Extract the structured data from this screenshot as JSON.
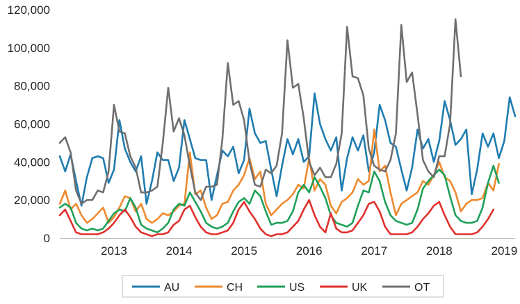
{
  "chart_data": {
    "type": "line",
    "title": "",
    "xlabel": "",
    "ylabel": "",
    "x_tick_labels": [
      "2013",
      "2014",
      "2015",
      "2016",
      "2017",
      "2018",
      "2019"
    ],
    "y_tick_labels": [
      "0",
      "20,000",
      "40,000",
      "60,000",
      "80,000",
      "100,000",
      "120,000"
    ],
    "ylim": [
      0,
      120000
    ],
    "x_start": "2012-09",
    "grid": false,
    "legend_position": "bottom",
    "series": [
      {
        "name": "AU",
        "color": "#1f7cb0",
        "values": [
          43000,
          35000,
          44000,
          30000,
          17000,
          32000,
          42000,
          43000,
          42000,
          29000,
          36000,
          62000,
          47000,
          40000,
          35000,
          43000,
          18000,
          30000,
          45000,
          41000,
          41000,
          30000,
          37000,
          62000,
          52000,
          42000,
          41000,
          41000,
          20000,
          33000,
          46000,
          43000,
          48000,
          34000,
          41000,
          68000,
          55000,
          50000,
          51000,
          36000,
          22000,
          38000,
          52000,
          44000,
          52000,
          40000,
          43000,
          76000,
          60000,
          52000,
          46000,
          53000,
          25000,
          42000,
          53000,
          46000,
          54000,
          35000,
          45000,
          70000,
          62000,
          50000,
          48000,
          36000,
          25000,
          37000,
          57000,
          47000,
          52000,
          40000,
          51000,
          72000,
          62000,
          49000,
          52000,
          57000,
          23000,
          36000,
          55000,
          48000,
          55000,
          42000,
          51000,
          74000,
          64000
        ]
      },
      {
        "name": "CH",
        "color": "#ef8a2e",
        "values": [
          18000,
          25000,
          15000,
          18000,
          12000,
          8000,
          10000,
          13000,
          16000,
          8000,
          11000,
          16000,
          22000,
          21000,
          14000,
          18000,
          10000,
          8000,
          10000,
          13000,
          12000,
          14000,
          17000,
          18000,
          45000,
          23000,
          25000,
          16000,
          10000,
          12000,
          18000,
          19000,
          25000,
          28000,
          33000,
          42000,
          31000,
          35000,
          18000,
          12000,
          15000,
          18000,
          20000,
          23000,
          28000,
          26000,
          42000,
          25000,
          31000,
          28000,
          17000,
          13000,
          19000,
          21000,
          24000,
          31000,
          28000,
          30000,
          57000,
          35000,
          38000,
          24000,
          12000,
          18000,
          20000,
          22000,
          24000,
          30000,
          28000,
          33000,
          40000,
          32000,
          30000,
          24000,
          14000,
          18000,
          20000,
          20000,
          21000,
          29000,
          25000,
          39000
        ]
      },
      {
        "name": "US",
        "color": "#1fa05a",
        "values": [
          16000,
          18000,
          16000,
          8000,
          5000,
          4000,
          5000,
          4000,
          5000,
          9000,
          13000,
          15000,
          14000,
          21000,
          16000,
          7000,
          5000,
          4000,
          3000,
          5000,
          8000,
          15000,
          18000,
          17000,
          24000,
          19000,
          14000,
          8000,
          6000,
          5000,
          6000,
          8000,
          14000,
          19000,
          21000,
          18000,
          25000,
          22000,
          14000,
          7000,
          8000,
          8000,
          9000,
          14000,
          24000,
          28000,
          24000,
          32000,
          27000,
          21000,
          12000,
          8000,
          7000,
          6000,
          8000,
          17000,
          25000,
          24000,
          35000,
          30000,
          19000,
          12000,
          9000,
          8000,
          7000,
          8000,
          15000,
          26000,
          30000,
          33000,
          36000,
          33000,
          22000,
          12000,
          9000,
          8000,
          8000,
          9000,
          16000,
          29000,
          38000,
          29000
        ]
      },
      {
        "name": "UK",
        "color": "#e0302c",
        "values": [
          12000,
          15000,
          9000,
          3000,
          2000,
          2000,
          2000,
          2000,
          3000,
          5000,
          8000,
          12000,
          15000,
          11000,
          6000,
          3000,
          2000,
          1000,
          2000,
          2000,
          3000,
          7000,
          9000,
          15000,
          17000,
          11000,
          6000,
          3000,
          2000,
          2000,
          3000,
          4000,
          8000,
          15000,
          19000,
          14000,
          10000,
          5000,
          2000,
          1000,
          2000,
          2000,
          3000,
          6000,
          9000,
          15000,
          20000,
          12000,
          6000,
          3000,
          13000,
          5000,
          3000,
          3000,
          4000,
          8000,
          12000,
          18000,
          19000,
          14000,
          6000,
          2000,
          2000,
          2000,
          2000,
          3000,
          6000,
          10000,
          13000,
          17000,
          19000,
          12000,
          6000,
          2000,
          2000,
          2000,
          2000,
          3000,
          6000,
          10000,
          15000
        ]
      },
      {
        "name": "OT",
        "color": "#6f6f6f",
        "values": [
          50000,
          53000,
          45000,
          25000,
          18000,
          20000,
          20000,
          25000,
          24000,
          35000,
          70000,
          56000,
          55000,
          43000,
          37000,
          24000,
          24000,
          25000,
          27000,
          50000,
          79000,
          56000,
          63000,
          54000,
          38000,
          24000,
          20000,
          27000,
          27000,
          28000,
          52000,
          92000,
          70000,
          72000,
          62000,
          40000,
          28000,
          27000,
          36000,
          34000,
          38000,
          55000,
          104000,
          79000,
          81000,
          63000,
          40000,
          33000,
          37000,
          32000,
          32000,
          39000,
          55000,
          111000,
          85000,
          84000,
          75000,
          47000,
          38000,
          36000,
          35000,
          41000,
          55000,
          112000,
          82000,
          87000,
          65000,
          41000,
          35000,
          32000,
          43000,
          43000,
          60000,
          115000,
          85000
        ]
      }
    ]
  }
}
